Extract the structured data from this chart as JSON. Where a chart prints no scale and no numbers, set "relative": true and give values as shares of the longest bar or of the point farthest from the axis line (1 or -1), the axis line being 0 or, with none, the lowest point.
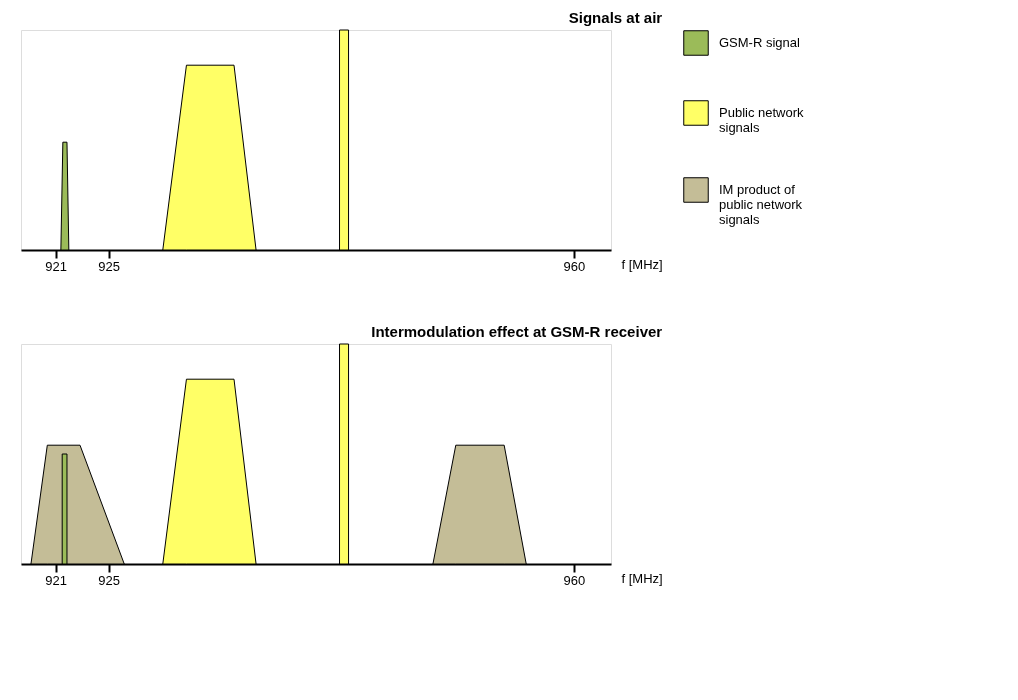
{
  "chart_data": [
    {
      "type": "area",
      "title": "Signals at air",
      "xlabel": "f [MHz]",
      "relative": true,
      "legend": "right",
      "xlim": [
        918.4,
        962.8
      ],
      "xticks": [
        921,
        925,
        960
      ],
      "series": [
        {
          "name": "GSM-R signal",
          "color": "#9bbb59",
          "x": [
            921.4,
            921.55,
            921.86,
            922.0
          ],
          "values": [
            0,
            0.49,
            0.49,
            0
          ]
        },
        {
          "name": "Public network signals",
          "color": "#ffff66",
          "x": [
            929.07,
            930.85,
            934.43,
            936.09
          ],
          "values": [
            0,
            0.84,
            0.84,
            0
          ]
        },
        {
          "color": "#ffff66",
          "x": [
            942.37,
            942.37,
            943.05,
            943.05
          ],
          "values": [
            0,
            1,
            1,
            0
          ]
        }
      ]
    },
    {
      "type": "area",
      "title": "Intermodulation effect at GSM-R receiver",
      "xlabel": "f [MHz]",
      "relative": true,
      "legend": "right",
      "xlim": [
        918.4,
        962.8
      ],
      "xticks": [
        921,
        925,
        960
      ],
      "series": [
        {
          "name": "IM product of public network signals",
          "color": "#c4bd97",
          "x": [
            919.15,
            920.38,
            922.84,
            926.17
          ],
          "values": [
            0,
            0.54,
            0.54,
            0
          ]
        },
        {
          "color": "#c4bd97",
          "x": [
            949.4,
            951.12,
            954.76,
            956.42
          ],
          "values": [
            0,
            0.54,
            0.54,
            0
          ]
        },
        {
          "name": "Public network signals",
          "color": "#ffff66",
          "x": [
            929.07,
            930.85,
            934.43,
            936.09
          ],
          "values": [
            0,
            0.84,
            0.84,
            0
          ]
        },
        {
          "color": "#ffff66",
          "x": [
            942.37,
            942.37,
            943.05,
            943.05
          ],
          "values": [
            0,
            1,
            1,
            0
          ]
        },
        {
          "name": "GSM-R signal",
          "color": "#9bbb59",
          "x": [
            921.5,
            921.5,
            921.86,
            921.86
          ],
          "values": [
            0,
            0.5,
            0.5,
            0
          ]
        }
      ]
    }
  ]
}
